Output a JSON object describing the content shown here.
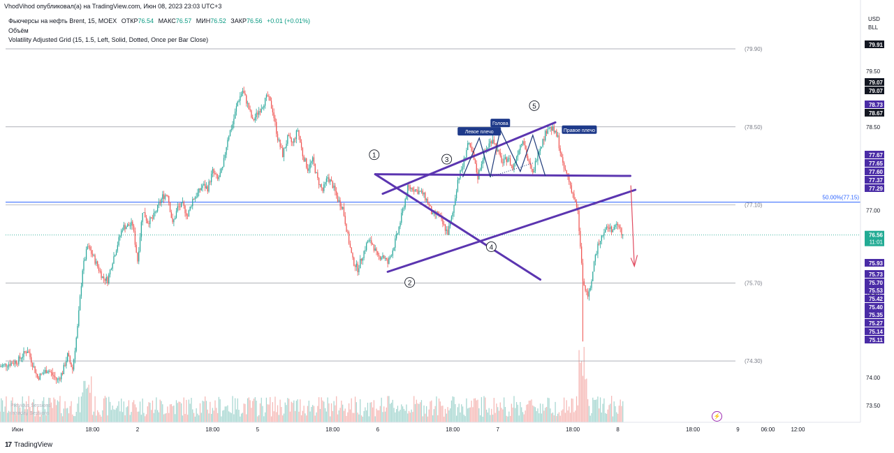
{
  "header": {
    "caption": "VhodVihod опубликовал(а) на TradingView.com, Июн 08, 2023 23:03 UTC+3"
  },
  "legend": {
    "symbol": "Фьючерсы на нефть Brent, 15, MOEX",
    "open_label": "ОТКР",
    "open": "76.54",
    "high_label": "МАКС",
    "high": "76.57",
    "low_label": "МИН",
    "low": "76.52",
    "close_label": "ЗАКР",
    "close": "76.56",
    "change": "+0.01 (+0.01%)",
    "volume_label": "Объём",
    "indicator": "Volatility Adjusted Grid (15, 1.5, Left, Solid, Dotted, Once per Bar Close)"
  },
  "currency": {
    "line1": "USD",
    "line2": "BLL"
  },
  "footer": {
    "brand": "TradingView"
  },
  "volume_legend": {
    "line1": "Previous Sessions",
    "line2": "Intraday Sessions"
  },
  "colors": {
    "up": "#26a69a",
    "down": "#ef5350",
    "pattern": "#5b35b0",
    "hs": "#1e3a7a",
    "fib": "#2962ff",
    "last": "#22ab94",
    "arrow": "#e04a5f",
    "grid": "#787b86"
  },
  "chart_data": {
    "type": "candlestick",
    "title": "Фьючерсы на нефть Brent, 15, MOEX",
    "ylim": [
      73.2,
      80.15
    ],
    "y_ticks": [
      "73.50",
      "74.00",
      "75.50",
      "77.00",
      "78.00",
      "78.50",
      "79.50",
      "80.00"
    ],
    "x_ticks": [
      {
        "t": 0.0,
        "label": "Июн"
      },
      {
        "t": 15.0,
        "label": "18:00"
      },
      {
        "t": 24.0,
        "label": "2"
      },
      {
        "t": 39.0,
        "label": "18:00"
      },
      {
        "t": 48.0,
        "label": "5"
      },
      {
        "t": 63.0,
        "label": "18:00"
      },
      {
        "t": 72.0,
        "label": "6"
      },
      {
        "t": 87.0,
        "label": "18:00"
      },
      {
        "t": 96.0,
        "label": "7"
      },
      {
        "t": 111.0,
        "label": "18:00"
      },
      {
        "t": 120.0,
        "label": "8"
      },
      {
        "t": 135.0,
        "label": "18:00"
      },
      {
        "t": 144.0,
        "label": "9"
      },
      {
        "t": 150.0,
        "label": "06:00"
      },
      {
        "t": 156.0,
        "label": "12:00"
      }
    ],
    "x_range_hours": [
      -3.5,
      168.5
    ],
    "price_path": [
      [
        -3.5,
        74.2
      ],
      [
        0,
        74.3
      ],
      [
        2,
        74.5
      ],
      [
        4,
        74.0
      ],
      [
        6,
        74.15
      ],
      [
        8,
        73.95
      ],
      [
        9,
        74.1
      ],
      [
        10,
        74.4
      ],
      [
        11,
        74.15
      ],
      [
        12,
        74.9
      ],
      [
        13,
        75.95
      ],
      [
        14,
        76.35
      ],
      [
        15,
        76.2
      ],
      [
        17,
        75.8
      ],
      [
        18,
        75.75
      ],
      [
        19,
        76.1
      ],
      [
        21,
        76.7
      ],
      [
        23,
        76.75
      ],
      [
        24,
        76.1
      ],
      [
        25,
        77.0
      ],
      [
        26,
        76.8
      ],
      [
        27,
        76.85
      ],
      [
        28,
        77.05
      ],
      [
        29,
        77.25
      ],
      [
        30,
        77.3
      ],
      [
        31,
        76.75
      ],
      [
        32,
        77.05
      ],
      [
        33,
        77.1
      ],
      [
        34,
        76.9
      ],
      [
        35,
        77.2
      ],
      [
        36,
        77.3
      ],
      [
        37,
        77.45
      ],
      [
        38,
        77.4
      ],
      [
        39,
        77.7
      ],
      [
        40,
        77.55
      ],
      [
        41,
        77.75
      ],
      [
        42,
        78.3
      ],
      [
        43,
        78.55
      ],
      [
        44,
        78.95
      ],
      [
        45,
        79.15
      ],
      [
        46,
        78.9
      ],
      [
        47,
        78.6
      ],
      [
        48,
        78.75
      ],
      [
        49,
        78.9
      ],
      [
        50,
        79.05
      ],
      [
        51,
        78.8
      ],
      [
        52,
        78.3
      ],
      [
        53,
        78.0
      ],
      [
        54,
        78.3
      ],
      [
        55,
        78.2
      ],
      [
        56,
        78.45
      ],
      [
        57,
        78.0
      ],
      [
        58,
        77.75
      ],
      [
        59,
        77.9
      ],
      [
        60,
        77.55
      ],
      [
        61,
        77.35
      ],
      [
        62,
        77.6
      ],
      [
        63,
        77.45
      ],
      [
        64,
        77.2
      ],
      [
        65,
        77.05
      ],
      [
        66,
        76.55
      ],
      [
        67,
        76.1
      ],
      [
        68,
        75.95
      ],
      [
        69,
        76.2
      ],
      [
        70,
        76.45
      ],
      [
        71,
        76.4
      ],
      [
        72,
        76.15
      ],
      [
        73,
        76.2
      ],
      [
        74,
        76.05
      ],
      [
        75,
        76.3
      ],
      [
        76,
        76.6
      ],
      [
        77,
        77.0
      ],
      [
        78,
        77.4
      ],
      [
        79,
        77.4
      ],
      [
        80,
        77.35
      ],
      [
        81,
        77.3
      ],
      [
        82,
        77.15
      ],
      [
        83,
        76.9
      ],
      [
        84,
        76.95
      ],
      [
        85,
        76.75
      ],
      [
        86,
        76.6
      ],
      [
        87,
        76.95
      ],
      [
        88,
        77.55
      ],
      [
        89,
        77.8
      ],
      [
        90,
        78.2
      ],
      [
        91,
        78.0
      ],
      [
        92,
        77.6
      ],
      [
        93,
        77.95
      ],
      [
        94,
        78.15
      ],
      [
        95,
        78.3
      ],
      [
        96,
        78.05
      ],
      [
        97,
        77.85
      ],
      [
        98,
        77.95
      ],
      [
        99,
        77.75
      ],
      [
        100,
        78.05
      ],
      [
        101,
        78.3
      ],
      [
        102,
        77.9
      ],
      [
        103,
        77.65
      ],
      [
        104,
        78.05
      ],
      [
        105,
        78.25
      ],
      [
        106,
        78.5
      ],
      [
        107,
        78.45
      ],
      [
        108,
        78.3
      ],
      [
        109,
        77.8
      ],
      [
        110,
        77.6
      ],
      [
        111,
        77.3
      ],
      [
        112,
        76.95
      ],
      [
        113,
        75.75
      ],
      [
        114,
        75.4
      ],
      [
        115,
        75.9
      ],
      [
        116,
        76.4
      ],
      [
        117,
        76.6
      ],
      [
        118,
        76.7
      ],
      [
        119,
        76.65
      ],
      [
        120,
        76.75
      ],
      [
        121,
        76.55
      ]
    ],
    "support_resistance": [
      79.9,
      78.5,
      77.1,
      75.7,
      74.3
    ],
    "fib_level": {
      "value": 77.15,
      "label": "50.00%(77.15)"
    },
    "last_price": {
      "value": 76.56,
      "label": "76.56",
      "countdown": "11:01"
    },
    "price_badges_dark": [
      "79.91",
      "79.07",
      "79.07",
      "78.67"
    ],
    "price_badges_purple": [
      "78.73",
      "77.67",
      "77.65",
      "77.60",
      "77.37",
      "77.29",
      "75.93",
      "75.73",
      "75.70",
      "75.53",
      "75.42",
      "75.40",
      "75.35",
      "75.27",
      "75.14",
      "75.11"
    ],
    "annotations": {
      "points": [
        "1",
        "2",
        "3",
        "4",
        "5"
      ],
      "labels": [
        "Левое плечо",
        "Голова",
        "Правое плечо"
      ],
      "level_labels": [
        "(79.90)",
        "(78.50)",
        "(77.10)",
        "(75.70)",
        "(74.30)"
      ]
    }
  }
}
